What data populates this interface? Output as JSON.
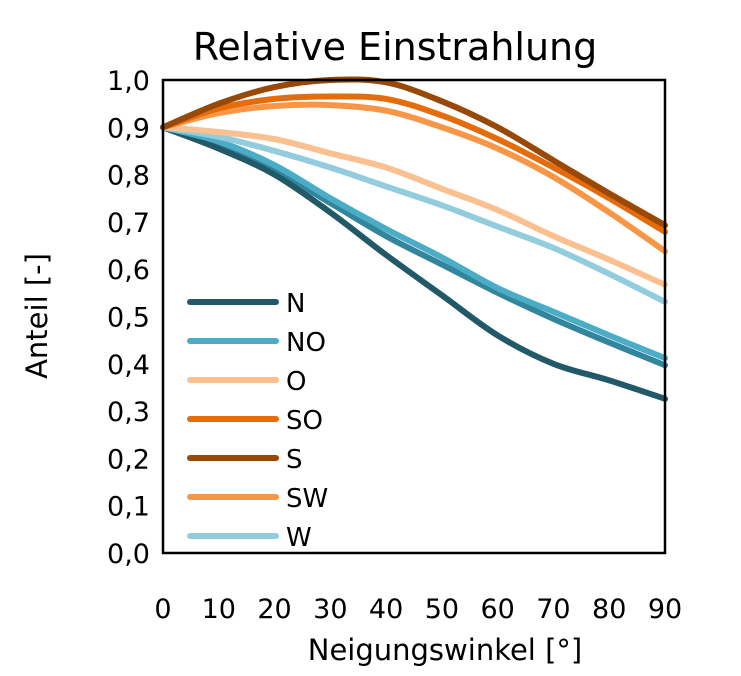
{
  "chart_data": {
    "type": "line",
    "title": "Relative Einstrahlung",
    "xlabel": "Neigungswinkel [°]",
    "ylabel": "Anteil [-]",
    "xlim": [
      0,
      90
    ],
    "ylim": [
      0,
      1
    ],
    "grid": false,
    "legend_placement": "bottom-left",
    "x": [
      0,
      10,
      20,
      30,
      40,
      50,
      60,
      70,
      80,
      90
    ],
    "x_tick_labels": [
      "0",
      "10",
      "20",
      "30",
      "40",
      "50",
      "60",
      "70",
      "80",
      "90"
    ],
    "y_tick_labels": [
      "0,0",
      "0,1",
      "0,2",
      "0,3",
      "0,4",
      "0,5",
      "0,6",
      "0,7",
      "0,8",
      "0,9",
      "1,0"
    ],
    "series": [
      {
        "name": "N",
        "color": "#215968",
        "values": [
          0.9,
          0.855,
          0.8,
          0.72,
          0.63,
          0.545,
          0.46,
          0.4,
          0.365,
          0.326
        ]
      },
      {
        "name": "NO",
        "color": "#4bacc6",
        "values": [
          0.9,
          0.87,
          0.82,
          0.75,
          0.685,
          0.625,
          0.56,
          0.51,
          0.46,
          0.412
        ]
      },
      {
        "name": "O",
        "color": "#fac090",
        "values": [
          0.9,
          0.89,
          0.875,
          0.845,
          0.815,
          0.77,
          0.725,
          0.67,
          0.62,
          0.567
        ]
      },
      {
        "name": "SO",
        "color": "#e46c0a",
        "values": [
          0.9,
          0.94,
          0.96,
          0.965,
          0.96,
          0.925,
          0.875,
          0.815,
          0.75,
          0.679
        ]
      },
      {
        "name": "S",
        "color": "#984807",
        "values": [
          0.9,
          0.95,
          0.985,
          1.0,
          0.995,
          0.955,
          0.9,
          0.83,
          0.76,
          0.693
        ]
      },
      {
        "name": "SW",
        "color": "#f79646",
        "values": [
          0.9,
          0.93,
          0.945,
          0.947,
          0.935,
          0.9,
          0.855,
          0.795,
          0.72,
          0.638
        ]
      },
      {
        "name": "W",
        "color": "#93cddd",
        "values": [
          0.9,
          0.88,
          0.85,
          0.815,
          0.775,
          0.735,
          0.69,
          0.645,
          0.59,
          0.531
        ]
      },
      {
        "in_legend": false,
        "color": "#31859c",
        "values": [
          0.9,
          0.865,
          0.81,
          0.74,
          0.67,
          0.61,
          0.55,
          0.495,
          0.445,
          0.397
        ]
      }
    ]
  }
}
